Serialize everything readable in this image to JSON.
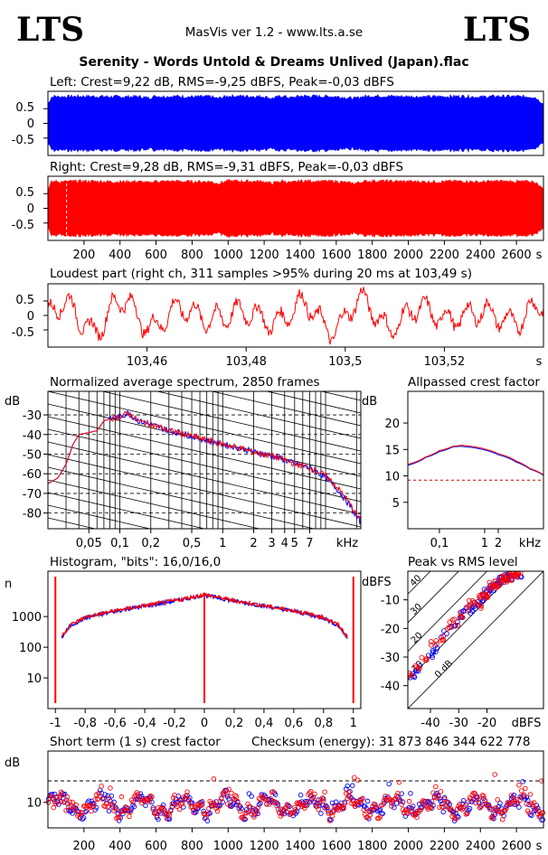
{
  "header": {
    "logo_left": "LTS",
    "logo_right": "LTS",
    "app_version": "MasVis ver 1.2 - www.lts.a.se",
    "file_name": "Serenity - Words Untold & Dreams Unlived (Japan).flac"
  },
  "colors": {
    "left": "#0000ff",
    "right": "#ff0000",
    "grid": "#000000",
    "ref": "#cc0000"
  },
  "chart_data": [
    {
      "type": "area",
      "id": "left-waveform",
      "title": "Left: Crest=9,22 dB, RMS=-9,25 dBFS, Peak=-0,03 dBFS",
      "ytick_labels": [
        "0.5",
        "0",
        "-0.5"
      ],
      "ylim": [
        -1,
        1
      ],
      "xlim": [
        0,
        2750
      ],
      "series": [
        {
          "color": "#0000ff",
          "envelope_t": [
            0,
            20,
            40,
            60,
            100,
            200,
            300,
            400,
            500,
            560,
            600,
            640,
            700,
            800,
            900,
            940,
            1000,
            1100,
            1200,
            1240,
            1300,
            1350,
            1400,
            1500,
            1600,
            1700,
            1750,
            1800,
            1900,
            2000,
            2100,
            2200,
            2300,
            2400,
            2450,
            2500,
            2600,
            2700,
            2750
          ],
          "envelope_a": [
            0.7,
            0.95,
            0.98,
            0.96,
            0.97,
            0.98,
            0.97,
            0.96,
            0.97,
            0.92,
            0.99,
            0.97,
            0.98,
            0.96,
            0.97,
            0.9,
            0.99,
            0.98,
            0.97,
            0.9,
            0.99,
            0.92,
            0.99,
            0.98,
            0.97,
            0.9,
            0.97,
            0.99,
            0.98,
            0.97,
            0.96,
            0.97,
            0.98,
            0.95,
            0.97,
            0.98,
            0.97,
            0.96,
            0.7
          ]
        }
      ]
    },
    {
      "type": "area",
      "id": "right-waveform",
      "title": "Right: Crest=9,28 dB, RMS=-9,31 dBFS, Peak=-0,03 dBFS",
      "ytick_labels": [
        "0.5",
        "0",
        "-0.5"
      ],
      "xtick_labels": [
        "200",
        "400",
        "600",
        "800",
        "1000",
        "1200",
        "1400",
        "1600",
        "1800",
        "2000",
        "2200",
        "2400",
        "2600",
        "s"
      ],
      "xticks": [
        200,
        400,
        600,
        800,
        1000,
        1200,
        1400,
        1600,
        1800,
        2000,
        2200,
        2400,
        2600
      ],
      "ylim": [
        -1,
        1
      ],
      "xlim": [
        0,
        2750
      ],
      "marker_t": 103.49,
      "series": [
        {
          "color": "#ff0000"
        }
      ]
    },
    {
      "type": "line",
      "id": "loudest-part",
      "title": "Loudest part (right ch, 311 samples >95% during 20 ms at 103,49 s)",
      "ytick_labels": [
        "0.5",
        "0",
        "-0.5"
      ],
      "xtick_labels": [
        "103,46",
        "103,48",
        "103,5",
        "103,52",
        "s"
      ],
      "xticks": [
        103.46,
        103.48,
        103.5,
        103.52
      ],
      "xlim": [
        103.44,
        103.54
      ],
      "ylim": [
        -1,
        1
      ],
      "series": [
        {
          "color": "#ff0000"
        }
      ]
    },
    {
      "type": "line",
      "id": "average-spectrum",
      "title": "Normalized average spectrum, 2850 frames",
      "ylabel": "dB",
      "ytick_labels": [
        "-30",
        "-40",
        "-50",
        "-60",
        "-70",
        "-80"
      ],
      "yticks": [
        -30,
        -40,
        -50,
        -60,
        -70,
        -80
      ],
      "ylim": [
        -88,
        -18
      ],
      "xlabel": "kHz",
      "xscale": "log",
      "xtick_labels": [
        "0,05",
        "0,1",
        "0,2",
        "0,5",
        "1",
        "2",
        "3",
        "4",
        "5",
        "7"
      ],
      "xticks": [
        0.05,
        0.1,
        0.2,
        0.5,
        1,
        2,
        3,
        4,
        5,
        7
      ],
      "xlim": [
        0.02,
        22
      ],
      "series": [
        {
          "name": "",
          "color": "#0000ff",
          "x": [
            0.02,
            0.025,
            0.03,
            0.035,
            0.04,
            0.05,
            0.06,
            0.07,
            0.08,
            0.1,
            0.12,
            0.15,
            0.2,
            0.3,
            0.5,
            0.7,
            1,
            1.5,
            2,
            3,
            4,
            5,
            7,
            10,
            12,
            15,
            18,
            20,
            22
          ],
          "y": [
            -65,
            -62,
            -55,
            -45,
            -40,
            -39,
            -38,
            -33,
            -32,
            -31,
            -29,
            -33,
            -35,
            -38,
            -41,
            -43,
            -45,
            -47,
            -49,
            -51,
            -53,
            -55,
            -57,
            -62,
            -66,
            -72,
            -78,
            -82,
            -85
          ]
        },
        {
          "name": "",
          "color": "#ff0000",
          "x": [
            0.02,
            0.025,
            0.03,
            0.035,
            0.04,
            0.05,
            0.06,
            0.07,
            0.08,
            0.1,
            0.12,
            0.15,
            0.2,
            0.3,
            0.5,
            0.7,
            1,
            1.5,
            2,
            3,
            4,
            5,
            7,
            10,
            12,
            15,
            18,
            20,
            22
          ],
          "y": [
            -65,
            -62,
            -55,
            -45,
            -40,
            -39,
            -38,
            -33,
            -32,
            -31,
            -29,
            -33,
            -35,
            -38,
            -41,
            -43,
            -45,
            -47,
            -49,
            -51,
            -53,
            -55,
            -57,
            -61,
            -65,
            -71,
            -77,
            -81,
            -84
          ]
        }
      ]
    },
    {
      "type": "line",
      "id": "allpassed-crest",
      "title": "Allpassed crest factor",
      "ylabel": "dB",
      "ytick_labels": [
        "20",
        "15",
        "10",
        "5"
      ],
      "yticks": [
        20,
        15,
        10,
        5
      ],
      "ylim": [
        0,
        26
      ],
      "xlabel": "kHz",
      "xscale": "log",
      "xtick_labels": [
        "0,1",
        "1",
        "2"
      ],
      "xticks": [
        0.1,
        1,
        2
      ],
      "xlim": [
        0.02,
        20
      ],
      "reference_db": 9.2,
      "series": [
        {
          "name": "",
          "color": "#0000ff",
          "x": [
            0.02,
            0.05,
            0.1,
            0.2,
            0.3,
            0.5,
            1,
            2,
            5,
            10,
            20
          ],
          "y": [
            12,
            13.5,
            14.6,
            15.5,
            15.6,
            15.4,
            14.9,
            14.0,
            12.6,
            11.3,
            10.1
          ]
        },
        {
          "name": "",
          "color": "#ff0000",
          "x": [
            0.02,
            0.05,
            0.1,
            0.2,
            0.3,
            0.5,
            1,
            2,
            5,
            10,
            20
          ],
          "y": [
            12.2,
            13.6,
            14.8,
            15.6,
            15.8,
            15.6,
            15.1,
            14.2,
            12.8,
            11.4,
            10.2
          ]
        }
      ]
    },
    {
      "type": "bar",
      "id": "histogram",
      "title": "Histogram, \"bits\": 16,0/16,0",
      "ylabel": "n",
      "yscale": "log",
      "ytick_labels": [
        "1000",
        "100",
        "10"
      ],
      "yticks": [
        1000,
        100,
        10
      ],
      "ylim": [
        1,
        30000
      ],
      "xtick_labels": [
        "-1",
        "-0,8",
        "-0,6",
        "-0,4",
        "-0,2",
        "0",
        "0,2",
        "0,4",
        "0,6",
        "0,8",
        "1"
      ],
      "xticks": [
        -1,
        -0.8,
        -0.6,
        -0.4,
        -0.2,
        0,
        0.2,
        0.4,
        0.6,
        0.8,
        1
      ],
      "xlim": [
        -1.05,
        1.05
      ],
      "series": [
        {
          "name": "",
          "color": "#0000ff",
          "x": [
            -0.96,
            -0.9,
            -0.8,
            -0.6,
            -0.4,
            -0.2,
            0,
            0.2,
            0.4,
            0.6,
            0.8,
            0.9,
            0.96
          ],
          "y": [
            200,
            500,
            900,
            1500,
            2200,
            3200,
            5000,
            3200,
            2200,
            1500,
            900,
            500,
            200
          ]
        },
        {
          "name": "",
          "color": "#ff0000",
          "x": [
            -0.96,
            -0.9,
            -0.8,
            -0.6,
            -0.4,
            -0.2,
            0,
            0.2,
            0.4,
            0.6,
            0.8,
            0.9,
            0.96
          ],
          "y": [
            220,
            520,
            950,
            1550,
            2250,
            3300,
            5200,
            3300,
            2250,
            1550,
            950,
            520,
            220
          ]
        }
      ],
      "spikes": [
        {
          "x": -1,
          "y": 20000
        },
        {
          "x": 0,
          "y": 6000
        },
        {
          "x": 1,
          "y": 20000
        }
      ]
    },
    {
      "type": "scatter",
      "id": "peak-vs-rms",
      "title": "Peak vs RMS level",
      "ylabel": "dBFS",
      "xlabel": "dBFS",
      "ytick_labels": [
        "-10",
        "-20",
        "-30",
        "-40"
      ],
      "yticks": [
        -10,
        -20,
        -30,
        -40
      ],
      "ylim": [
        -48,
        0
      ],
      "xtick_labels": [
        "-40",
        "-30",
        "-20"
      ],
      "xticks": [
        -40,
        -30,
        -20
      ],
      "xlim": [
        -48,
        0
      ],
      "diagonal_labels": [
        "40",
        "30",
        "20",
        "10",
        "0 dB"
      ],
      "diagonal_offsets": [
        40,
        30,
        20,
        10,
        0
      ],
      "series": [
        {
          "name": "",
          "color": "#0000ff",
          "x": [
            -46,
            -44,
            -40,
            -38,
            -35,
            -32,
            -30,
            -28,
            -26,
            -25,
            -24,
            -22,
            -21,
            -20,
            -19,
            -18,
            -17,
            -16,
            -15,
            -14,
            -13,
            -12,
            -11,
            -10,
            -9
          ],
          "y": [
            -37,
            -34,
            -29,
            -27,
            -22,
            -20,
            -17,
            -14,
            -14,
            -12,
            -11,
            -10,
            -9,
            -7,
            -6,
            -6,
            -5,
            -4,
            -3,
            -3,
            -2,
            -2,
            -2,
            -1,
            -1
          ]
        },
        {
          "name": "",
          "color": "#ff0000",
          "x": [
            -47,
            -45,
            -42,
            -39,
            -36,
            -34,
            -31,
            -29,
            -27,
            -25,
            -23,
            -22,
            -21,
            -20,
            -19,
            -18,
            -17,
            -16,
            -15,
            -14,
            -13,
            -12,
            -11,
            -10,
            -9
          ],
          "y": [
            -36,
            -33,
            -30,
            -25,
            -23,
            -19,
            -18,
            -15,
            -13,
            -11,
            -12,
            -9,
            -8,
            -8,
            -6,
            -5,
            -5,
            -4,
            -3,
            -3,
            -2,
            -2,
            -1,
            -1,
            -1
          ]
        }
      ]
    },
    {
      "type": "scatter",
      "id": "short-term-crest",
      "title": "Short term (1 s) crest factor",
      "checksum_text": "Checksum (energy):  31 873 846 344 622 778",
      "ylabel": "dB",
      "ytick_labels": [
        "10"
      ],
      "yticks": [
        10
      ],
      "ylim": [
        4,
        22
      ],
      "reference_db": 15,
      "xtick_labels": [
        "200",
        "400",
        "600",
        "800",
        "1000",
        "1200",
        "1400",
        "1600",
        "1800",
        "2000",
        "2200",
        "2400",
        "2600",
        "s"
      ],
      "xticks": [
        200,
        400,
        600,
        800,
        1000,
        1200,
        1400,
        1600,
        1800,
        2000,
        2200,
        2400,
        2600
      ],
      "xlim": [
        0,
        2750
      ],
      "series": [
        {
          "name": "",
          "color": "#0000ff",
          "base_db": 9.2
        },
        {
          "name": "",
          "color": "#ff0000",
          "base_db": 9.3
        }
      ],
      "outliers_t": [
        920,
        1700,
        1720,
        2480,
        2740
      ],
      "outliers_db": [
        15.5,
        15.8,
        15.2,
        16.5,
        15.0
      ]
    }
  ]
}
